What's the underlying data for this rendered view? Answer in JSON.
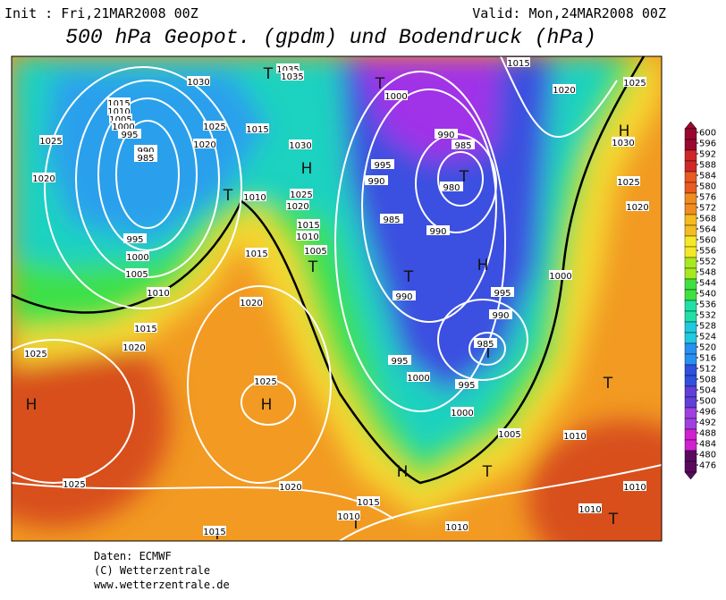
{
  "header": {
    "init": "Init : Fri,21MAR2008 00Z",
    "valid": "Valid: Mon,24MAR2008 00Z",
    "title": "500 hPa Geopot. (gpdm) und Bodendruck (hPa)"
  },
  "map": {
    "labels": [
      "T",
      "T",
      "T",
      "T",
      "T",
      "T",
      "T",
      "T",
      "T",
      "T",
      "T",
      "T",
      "H",
      "H",
      "H",
      "H",
      "H",
      "H",
      "1015",
      "1010",
      "1005",
      "1000",
      "995",
      "990",
      "985",
      "1025",
      "1020",
      "1030",
      "1025",
      "1020",
      "1015",
      "1035",
      "1035",
      "1030",
      "1000",
      "990",
      "985",
      "995",
      "990",
      "980",
      "985",
      "990",
      "995",
      "1000",
      "1005",
      "1010",
      "1015",
      "1020",
      "1025",
      "1015",
      "1020",
      "1025",
      "1010",
      "1025",
      "1020",
      "1015",
      "1010",
      "1005",
      "990",
      "995",
      "990",
      "985",
      "995",
      "1000",
      "995",
      "1000",
      "1005",
      "1010",
      "1000",
      "1015",
      "1020",
      "1025",
      "1030",
      "1025",
      "1020",
      "1025",
      "1020",
      "1015",
      "1010",
      "1010",
      "1010",
      "1010",
      "1015"
    ]
  },
  "colorbar": {
    "ticks": [
      600,
      596,
      592,
      588,
      584,
      580,
      576,
      572,
      568,
      564,
      560,
      556,
      552,
      548,
      544,
      540,
      536,
      532,
      528,
      524,
      520,
      516,
      512,
      508,
      504,
      500,
      496,
      492,
      488,
      484,
      480,
      476
    ]
  },
  "footer": {
    "source": "Daten: ECMWF",
    "copyright": "(C) Wetterzentrale",
    "url": "www.wetterzentrale.de"
  }
}
